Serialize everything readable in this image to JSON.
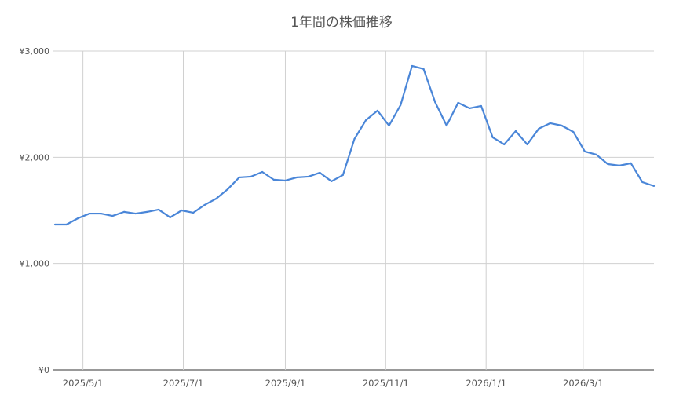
{
  "chart_data": {
    "type": "line",
    "title": "1年間の株価推移",
    "xlabel": "",
    "ylabel": "",
    "ylim": [
      0,
      3000
    ],
    "yticks": [
      0,
      1000,
      2000,
      3000
    ],
    "ytick_labels": [
      "¥0",
      "¥1,000",
      "¥2,000",
      "¥3,000"
    ],
    "xtick_dates": [
      "2025-05-01",
      "2025-07-01",
      "2025-09-01",
      "2025-11-01",
      "2026-01-01",
      "2026-03-01"
    ],
    "xtick_labels": [
      "2025/5/1",
      "2025/7/1",
      "2025/9/1",
      "2025/11/1",
      "2026/1/1",
      "2026/3/1"
    ],
    "xlim": [
      "2025-04-14",
      "2026-04-13"
    ],
    "grid": true,
    "series_color": "#4a86d8",
    "x": [
      "2025-04-14",
      "2025-04-21",
      "2025-04-28",
      "2025-05-05",
      "2025-05-12",
      "2025-05-19",
      "2025-05-26",
      "2025-06-02",
      "2025-06-09",
      "2025-06-16",
      "2025-06-23",
      "2025-06-30",
      "2025-07-07",
      "2025-07-14",
      "2025-07-21",
      "2025-07-28",
      "2025-08-04",
      "2025-08-11",
      "2025-08-18",
      "2025-08-25",
      "2025-09-01",
      "2025-09-08",
      "2025-09-15",
      "2025-09-22",
      "2025-09-29",
      "2025-10-06",
      "2025-10-13",
      "2025-10-20",
      "2025-10-27",
      "2025-11-03",
      "2025-11-10",
      "2025-11-17",
      "2025-11-24",
      "2025-12-01",
      "2025-12-08",
      "2025-12-15",
      "2025-12-22",
      "2025-12-29",
      "2026-01-05",
      "2026-01-12",
      "2026-01-19",
      "2026-01-26",
      "2026-02-02",
      "2026-02-09",
      "2026-02-16",
      "2026-02-23",
      "2026-03-02",
      "2026-03-09",
      "2026-03-16",
      "2026-03-23",
      "2026-03-30",
      "2026-04-06",
      "2026-04-13"
    ],
    "values": [
      1367,
      1367,
      1426,
      1470,
      1470,
      1448,
      1486,
      1470,
      1486,
      1508,
      1434,
      1500,
      1478,
      1552,
      1611,
      1700,
      1811,
      1818,
      1862,
      1789,
      1781,
      1811,
      1818,
      1855,
      1774,
      1833,
      2173,
      2350,
      2439,
      2298,
      2491,
      2860,
      2831,
      2520,
      2298,
      2513,
      2461,
      2483,
      2188,
      2121,
      2247,
      2121,
      2269,
      2321,
      2298,
      2239,
      2055,
      2025,
      1936,
      1922,
      1944,
      1766,
      1730
    ]
  }
}
